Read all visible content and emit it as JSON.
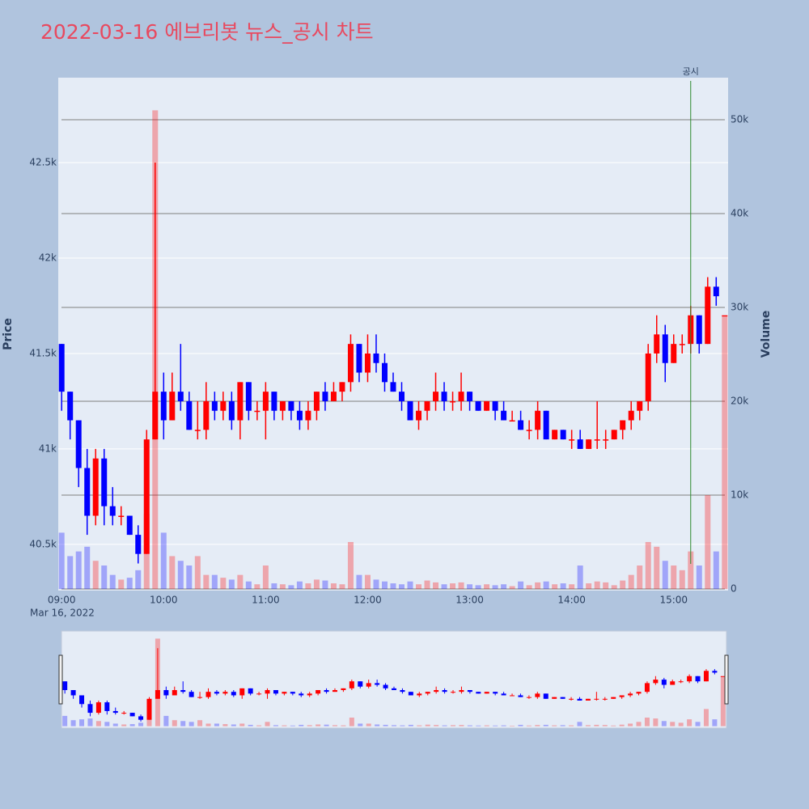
{
  "chart_data": {
    "type": "candlestick",
    "title": "2022-03-16 에브리봇 뉴스_공시 차트",
    "ylabel": "Price",
    "y2label": "Volume",
    "increasing_color": "#ff0000",
    "decreasing_color": "#0000ff",
    "grid": true,
    "rangeslider": true,
    "x_date_label": "Mar 16, 2022",
    "xlim": [
      "2022-03-16 08:58",
      "2022-03-16 15:32"
    ],
    "xticks": [
      {
        "value": "2022-03-16 09:00",
        "label": "09:00"
      },
      {
        "value": "2022-03-16 10:00",
        "label": "10:00"
      },
      {
        "value": "2022-03-16 11:00",
        "label": "11:00"
      },
      {
        "value": "2022-03-16 12:00",
        "label": "12:00"
      },
      {
        "value": "2022-03-16 13:00",
        "label": "13:00"
      },
      {
        "value": "2022-03-16 14:00",
        "label": "14:00"
      },
      {
        "value": "2022-03-16 15:00",
        "label": "15:00"
      }
    ],
    "ylim": [
      40258,
      42945
    ],
    "yticks": [
      {
        "value": 40500,
        "label": "40.5k"
      },
      {
        "value": 41000,
        "label": "41k"
      },
      {
        "value": 41500,
        "label": "41.5k"
      },
      {
        "value": 42000,
        "label": "42k"
      },
      {
        "value": 42500,
        "label": "42.5k"
      }
    ],
    "y2lim": [
      -170,
      54480
    ],
    "y2ticks": [
      0,
      {
        "value": 10000,
        "label": "10k"
      },
      {
        "value": 20000,
        "label": "20k"
      },
      {
        "value": 30000,
        "label": "30k"
      },
      {
        "value": 40000,
        "label": "40k"
      },
      {
        "value": 50000,
        "label": "50k"
      }
    ],
    "annotation": {
      "text": "공시",
      "x": "2022-03-16 15:10"
    },
    "x": [
      "2022-03-16 09:00",
      "2022-03-16 09:05",
      "2022-03-16 09:10",
      "2022-03-16 09:15",
      "2022-03-16 09:20",
      "2022-03-16 09:25",
      "2022-03-16 09:30",
      "2022-03-16 09:35",
      "2022-03-16 09:40",
      "2022-03-16 09:45",
      "2022-03-16 09:50",
      "2022-03-16 09:55",
      "2022-03-16 10:00",
      "2022-03-16 10:05",
      "2022-03-16 10:10",
      "2022-03-16 10:15",
      "2022-03-16 10:20",
      "2022-03-16 10:25",
      "2022-03-16 10:30",
      "2022-03-16 10:35",
      "2022-03-16 10:40",
      "2022-03-16 10:45",
      "2022-03-16 10:50",
      "2022-03-16 10:55",
      "2022-03-16 11:00",
      "2022-03-16 11:05",
      "2022-03-16 11:10",
      "2022-03-16 11:15",
      "2022-03-16 11:20",
      "2022-03-16 11:25",
      "2022-03-16 11:30",
      "2022-03-16 11:35",
      "2022-03-16 11:40",
      "2022-03-16 11:45",
      "2022-03-16 11:50",
      "2022-03-16 11:55",
      "2022-03-16 12:00",
      "2022-03-16 12:05",
      "2022-03-16 12:10",
      "2022-03-16 12:15",
      "2022-03-16 12:20",
      "2022-03-16 12:25",
      "2022-03-16 12:30",
      "2022-03-16 12:35",
      "2022-03-16 12:40",
      "2022-03-16 12:45",
      "2022-03-16 12:50",
      "2022-03-16 12:55",
      "2022-03-16 13:00",
      "2022-03-16 13:05",
      "2022-03-16 13:10",
      "2022-03-16 13:15",
      "2022-03-16 13:20",
      "2022-03-16 13:25",
      "2022-03-16 13:30",
      "2022-03-16 13:35",
      "2022-03-16 13:40",
      "2022-03-16 13:45",
      "2022-03-16 13:50",
      "2022-03-16 13:55",
      "2022-03-16 14:00",
      "2022-03-16 14:05",
      "2022-03-16 14:10",
      "2022-03-16 14:15",
      "2022-03-16 14:20",
      "2022-03-16 14:25",
      "2022-03-16 14:30",
      "2022-03-16 14:35",
      "2022-03-16 14:40",
      "2022-03-16 14:45",
      "2022-03-16 14:50",
      "2022-03-16 14:55",
      "2022-03-16 15:00",
      "2022-03-16 15:05",
      "2022-03-16 15:10",
      "2022-03-16 15:15",
      "2022-03-16 15:20",
      "2022-03-16 15:25",
      "2022-03-16 15:30"
    ],
    "open": [
      41550,
      41300,
      41150,
      40900,
      40650,
      40950,
      40700,
      40650,
      40650,
      40550,
      40450,
      41050,
      41300,
      41150,
      41300,
      41250,
      41100,
      41100,
      41250,
      41200,
      41250,
      41150,
      41350,
      41200,
      41200,
      41300,
      41200,
      41250,
      41200,
      41150,
      41200,
      41300,
      41250,
      41300,
      41350,
      41550,
      41400,
      41500,
      41450,
      41350,
      41300,
      41250,
      41150,
      41200,
      41250,
      41300,
      41250,
      41250,
      41300,
      41250,
      41200,
      41250,
      41200,
      41150,
      41150,
      41100,
      41100,
      41200,
      41050,
      41100,
      41050,
      41050,
      41000,
      41050,
      41050,
      41050,
      41100,
      41150,
      41200,
      41250,
      41500,
      41600,
      41450,
      41550,
      41550,
      41700,
      41550,
      41850,
      41700
    ],
    "high": [
      41550,
      41300,
      41150,
      41000,
      41000,
      41000,
      40800,
      40700,
      40650,
      40600,
      41100,
      42500,
      41400,
      41400,
      41550,
      41300,
      41250,
      41350,
      41300,
      41300,
      41300,
      41350,
      41350,
      41250,
      41350,
      41300,
      41250,
      41250,
      41250,
      41250,
      41300,
      41350,
      41350,
      41350,
      41600,
      41550,
      41600,
      41600,
      41500,
      41400,
      41350,
      41250,
      41250,
      41250,
      41400,
      41350,
      41300,
      41400,
      41300,
      41250,
      41250,
      41250,
      41250,
      41200,
      41200,
      41150,
      41250,
      41200,
      41100,
      41100,
      41100,
      41100,
      41050,
      41250,
      41100,
      41100,
      41150,
      41250,
      41250,
      41550,
      41700,
      41650,
      41600,
      41600,
      41750,
      41700,
      41900,
      41900,
      41700
    ],
    "low": [
      41200,
      41050,
      40800,
      40550,
      40600,
      40600,
      40600,
      40600,
      40550,
      40400,
      40450,
      41050,
      41050,
      41150,
      41200,
      41100,
      41050,
      41050,
      41150,
      41150,
      41100,
      41050,
      41150,
      41150,
      41050,
      41150,
      41150,
      41150,
      41100,
      41100,
      41150,
      41200,
      41250,
      41250,
      41300,
      41350,
      41350,
      41400,
      41300,
      41300,
      41200,
      41150,
      41100,
      41150,
      41200,
      41200,
      41200,
      41200,
      41200,
      41200,
      41200,
      41150,
      41150,
      41150,
      41100,
      41050,
      41050,
      41050,
      41050,
      41050,
      41000,
      41000,
      41000,
      41000,
      41000,
      41050,
      41050,
      41100,
      41150,
      41200,
      41450,
      41350,
      41450,
      41500,
      41500,
      41500,
      41550,
      41750,
      41700
    ],
    "close": [
      41300,
      41150,
      40900,
      40650,
      40950,
      40700,
      40650,
      40650,
      40550,
      40450,
      41050,
      41300,
      41150,
      41300,
      41250,
      41100,
      41100,
      41250,
      41200,
      41250,
      41150,
      41350,
      41200,
      41200,
      41300,
      41200,
      41250,
      41200,
      41150,
      41200,
      41300,
      41250,
      41300,
      41350,
      41550,
      41400,
      41500,
      41450,
      41350,
      41300,
      41250,
      41150,
      41200,
      41250,
      41300,
      41250,
      41250,
      41300,
      41250,
      41200,
      41250,
      41200,
      41150,
      41150,
      41100,
      41100,
      41200,
      41050,
      41100,
      41050,
      41050,
      41000,
      41050,
      41050,
      41050,
      41100,
      41150,
      41200,
      41250,
      41500,
      41600,
      41450,
      41550,
      41550,
      41700,
      41550,
      41850,
      41800,
      41700
    ],
    "volume": [
      6000,
      3500,
      4000,
      4500,
      3000,
      2500,
      1500,
      1000,
      1200,
      2000,
      8000,
      51000,
      6000,
      3500,
      3000,
      2500,
      3500,
      1500,
      1500,
      1200,
      1000,
      1500,
      800,
      500,
      2500,
      600,
      500,
      400,
      800,
      600,
      1000,
      900,
      600,
      500,
      5000,
      1500,
      1500,
      1000,
      800,
      600,
      500,
      800,
      500,
      900,
      700,
      500,
      600,
      700,
      500,
      400,
      500,
      400,
      500,
      300,
      800,
      400,
      700,
      800,
      500,
      600,
      500,
      2500,
      600,
      800,
      700,
      400,
      900,
      1500,
      2500,
      5000,
      4500,
      3000,
      2500,
      2000,
      4000,
      2500,
      10000,
      4000,
      29000
    ]
  }
}
